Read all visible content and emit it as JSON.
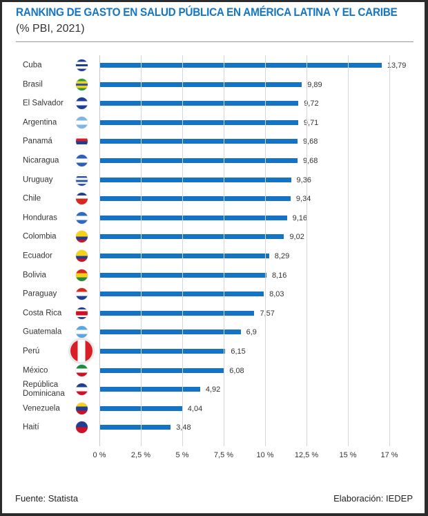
{
  "chart_data": {
    "type": "bar",
    "orientation": "horizontal",
    "title": "RANKING DE GASTO EN SALUD PÚBLICA EN AMÉRICA LATINA Y EL CARIBE",
    "subtitle": "(% PBI, 2021)",
    "categories": [
      "Cuba",
      "Brasil",
      "El Salvador",
      "Argentina",
      "Panamá",
      "Nicaragua",
      "Uruguay",
      "Chile",
      "Honduras",
      "Colombia",
      "Ecuador",
      "Bolivia",
      "Paraguay",
      "Costa Rica",
      "Guatemala",
      "Perú",
      "México",
      "República Dominicana",
      "Venezuela",
      "Haití"
    ],
    "values": [
      13.79,
      9.89,
      9.72,
      9.71,
      9.68,
      9.68,
      9.36,
      9.34,
      9.16,
      9.02,
      8.29,
      8.16,
      8.03,
      7.57,
      6.9,
      6.15,
      6.08,
      4.92,
      4.04,
      3.48
    ],
    "value_labels": [
      "13,79",
      "9,89",
      "9,72",
      "9,71",
      "9,68",
      "9,68",
      "9,36",
      "9,34",
      "9,16",
      "9,02",
      "8,29",
      "8,16",
      "8,03",
      "7,57",
      "6,9",
      "6,15",
      "6,08",
      "4,92",
      "4,04",
      "3,48"
    ],
    "x_tick_labels": [
      "0 %",
      "2,5 %",
      "5 %",
      "7,5 %",
      "10 %",
      "12,5 %",
      "15 %",
      "17 %"
    ],
    "xlabel": "",
    "ylabel": "",
    "grid": true,
    "bar_color": "#1473c4",
    "highlighted": "Perú"
  },
  "flags": {
    "Cuba": [
      "#1f3f95",
      "#ffffff",
      "#1f3f95",
      "#ffffff",
      "#1f3f95"
    ],
    "Brasil": [
      "#2d9b3a",
      "#f2d21a",
      "#2d56a0",
      "#f2d21a",
      "#2d9b3a"
    ],
    "El Salvador": [
      "#1d3f9a",
      "#ffffff",
      "#1d3f9a"
    ],
    "Argentina": [
      "#7cb6e4",
      "#ffffff",
      "#7cb6e4"
    ],
    "Panamá": [
      "#ffffff",
      "#d21f2b",
      "#1b3f96",
      "#ffffff"
    ],
    "Nicaragua": [
      "#2b60b5",
      "#ffffff",
      "#2b60b5"
    ],
    "Uruguay": [
      "#ffffff",
      "#2a55a8",
      "#ffffff",
      "#2a55a8",
      "#ffffff",
      "#2a55a8"
    ],
    "Chile": [
      "#1c3f94",
      "#ffffff",
      "#d52b1e",
      "#d52b1e"
    ],
    "Honduras": [
      "#2e69c0",
      "#ffffff",
      "#2e69c0"
    ],
    "Colombia": [
      "#f7d117",
      "#f7d117",
      "#1f3f95",
      "#ce1126"
    ],
    "Ecuador": [
      "#f7d117",
      "#f7d117",
      "#1f3f95",
      "#ce1126"
    ],
    "Bolivia": [
      "#d52b1e",
      "#f7d117",
      "#2a8a3a"
    ],
    "Paraguay": [
      "#d52b1e",
      "#ffffff",
      "#1f3f95"
    ],
    "Costa Rica": [
      "#1f3f95",
      "#ffffff",
      "#ce1126",
      "#ce1126",
      "#ffffff",
      "#1f3f95"
    ],
    "Guatemala": [
      "#5aa7e0",
      "#ffffff",
      "#5aa7e0"
    ],
    "Perú": [
      "#d91f26",
      "#ffffff",
      "#d91f26"
    ],
    "México": [
      "#1a8a45",
      "#ffffff",
      "#ce1126"
    ],
    "República Dominicana": [
      "#1f3f95",
      "#ffffff",
      "#ce1126"
    ],
    "Venezuela": [
      "#f7d117",
      "#1f3f95",
      "#ce1126"
    ],
    "Haití": [
      "#1f3f95",
      "#1f3f95",
      "#ce1126",
      "#ce1126"
    ]
  },
  "footer": {
    "source": "Fuente: Statista",
    "credit": "Elaboración: IEDEP"
  }
}
